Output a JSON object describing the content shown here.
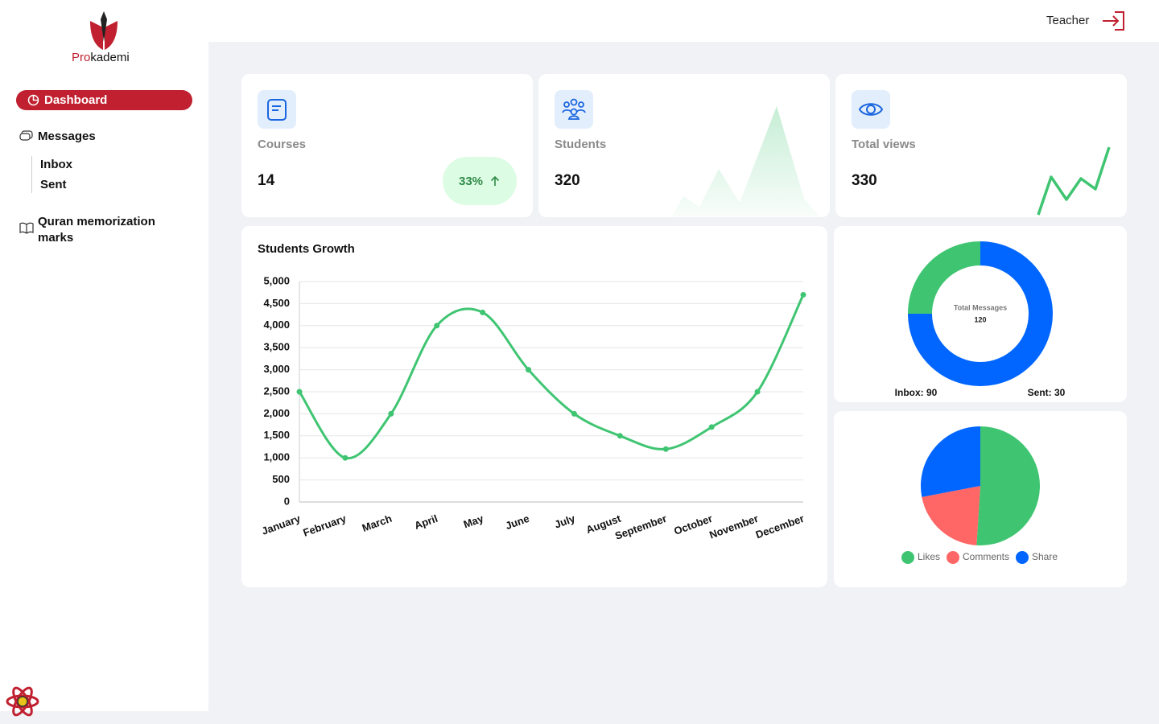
{
  "sidebar": {
    "brand": {
      "prefix": "Pro",
      "suffix": "kademi"
    },
    "nav": {
      "dashboard": "Dashboard",
      "messages": "Messages",
      "inbox": "Inbox",
      "sent": "Sent",
      "quran": "Quran memorization marks"
    }
  },
  "header": {
    "user": "Teacher"
  },
  "cards": [
    {
      "label": "Courses",
      "value": 14,
      "badge": "33%"
    },
    {
      "label": "Students",
      "value": 320
    },
    {
      "label": "Total views",
      "value": 330
    }
  ],
  "growth_chart": {
    "type": "line",
    "title": "Students Growth",
    "categories": [
      "January",
      "February",
      "March",
      "April",
      "May",
      "June",
      "July",
      "August",
      "September",
      "October",
      "November",
      "December"
    ],
    "values": [
      2500,
      1000,
      2000,
      4000,
      4300,
      3000,
      2000,
      1500,
      1200,
      1700,
      2500,
      4700
    ],
    "color": "#3fc572",
    "ylim": [
      0,
      5000
    ],
    "yticks": [
      0,
      500,
      {
        "value": 1000,
        "label": "1,000"
      },
      {
        "value": 1500,
        "label": "1,500"
      },
      {
        "value": 2000,
        "label": "2,000"
      },
      {
        "value": 2500,
        "label": "2,500"
      },
      {
        "value": 3000,
        "label": "3,000"
      },
      {
        "value": 3500,
        "label": "3,500"
      },
      {
        "value": 4000,
        "label": "4,000"
      },
      {
        "value": 4500,
        "label": "4,500"
      },
      {
        "value": 5000,
        "label": "5,000"
      }
    ],
    "grid": true
  },
  "messages_chart": {
    "type": "donut",
    "center_title": "Total Messages",
    "total": 120,
    "segments": [
      {
        "label": "Inbox: 90",
        "value": 90,
        "color": "#0066ff"
      },
      {
        "label": "Sent: 30",
        "value": 30,
        "color": "#3fc572"
      }
    ]
  },
  "engagement_chart": {
    "type": "pie",
    "series": [
      {
        "name": "Likes",
        "value": 51,
        "color": "#3fc572"
      },
      {
        "name": "Comments",
        "value": 21,
        "color": "#ff6666"
      },
      {
        "name": "Share",
        "value": 28,
        "color": "#0066ff"
      }
    ]
  }
}
